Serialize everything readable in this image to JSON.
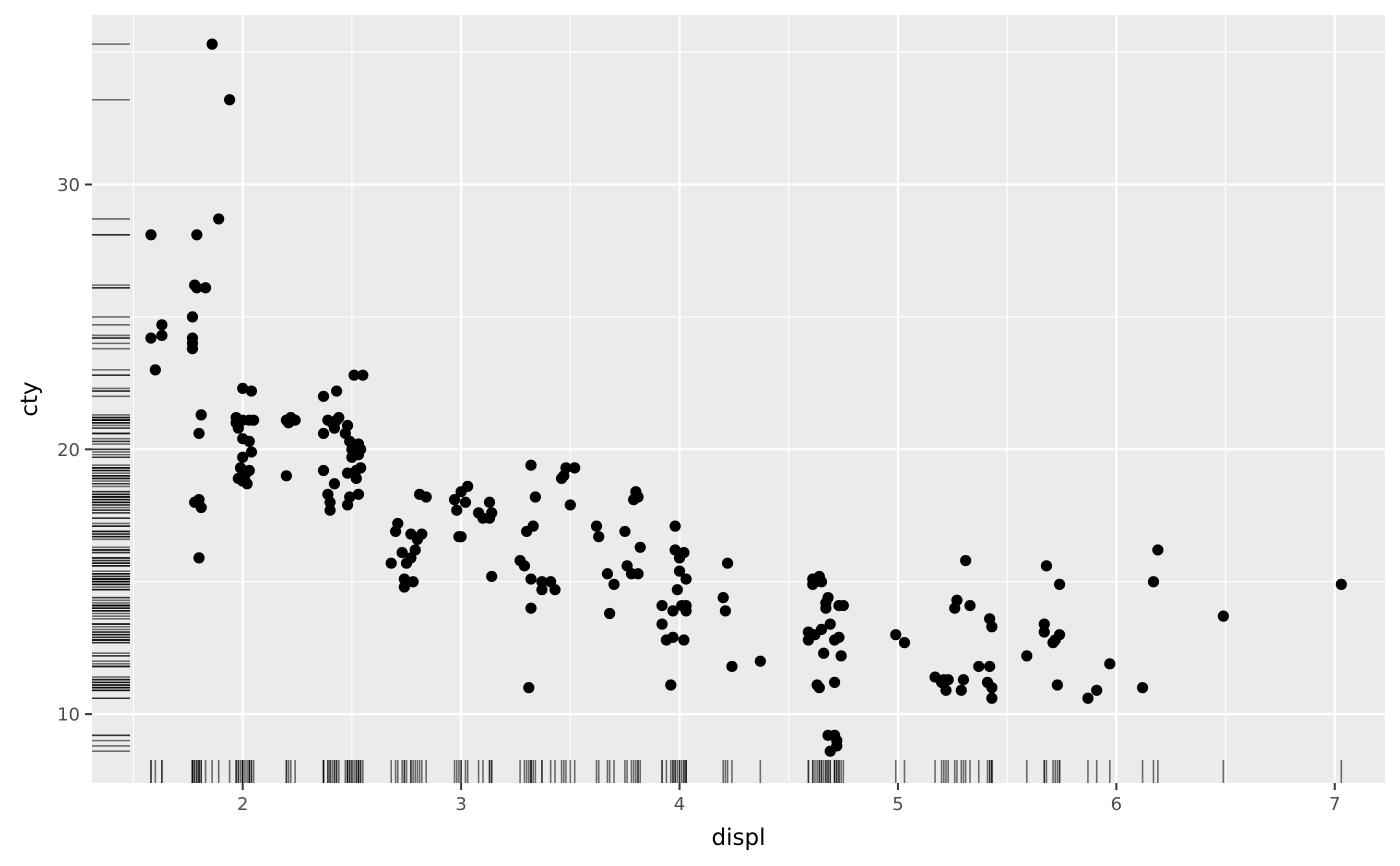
{
  "chart_data": {
    "type": "scatter",
    "title": "",
    "xlabel": "displ",
    "ylabel": "cty",
    "xlim": [
      1.31,
      7.23
    ],
    "ylim": [
      7.4,
      36.4
    ],
    "x_ticks": [
      2,
      3,
      4,
      5,
      6,
      7
    ],
    "y_ticks": [
      10,
      20,
      30
    ],
    "grid": true,
    "colors": {
      "panel": "#ebebeb",
      "grid": "#ffffff",
      "point": "#000000",
      "rug": "#000000",
      "tick_text": "#4d4d4d"
    },
    "rug": {
      "x": true,
      "y": true
    },
    "points": [
      [
        1.58,
        28.1
      ],
      [
        1.58,
        24.2
      ],
      [
        1.6,
        23.0
      ],
      [
        1.63,
        24.3
      ],
      [
        1.63,
        24.7
      ],
      [
        1.77,
        23.8
      ],
      [
        1.77,
        24.0
      ],
      [
        1.77,
        24.2
      ],
      [
        1.77,
        25.0
      ],
      [
        1.78,
        26.2
      ],
      [
        1.79,
        26.1
      ],
      [
        1.79,
        28.1
      ],
      [
        1.78,
        18.0
      ],
      [
        1.8,
        15.9
      ],
      [
        1.8,
        18.1
      ],
      [
        1.81,
        17.8
      ],
      [
        1.8,
        20.6
      ],
      [
        1.81,
        21.3
      ],
      [
        1.83,
        26.1
      ],
      [
        1.86,
        35.3
      ],
      [
        1.89,
        28.7
      ],
      [
        1.94,
        33.2
      ],
      [
        1.97,
        21.2
      ],
      [
        1.97,
        21.0
      ],
      [
        1.98,
        20.8
      ],
      [
        1.99,
        19.3
      ],
      [
        2.0,
        19.7
      ],
      [
        2.0,
        20.4
      ],
      [
        1.98,
        18.9
      ],
      [
        2.01,
        19.0
      ],
      [
        2.0,
        18.8
      ],
      [
        2.02,
        18.7
      ],
      [
        2.03,
        19.2
      ],
      [
        2.03,
        20.3
      ],
      [
        2.03,
        21.1
      ],
      [
        2.04,
        19.9
      ],
      [
        2.0,
        22.3
      ],
      [
        2.04,
        22.2
      ],
      [
        2.05,
        21.1
      ],
      [
        2.0,
        21.1
      ],
      [
        2.2,
        21.1
      ],
      [
        2.21,
        21.0
      ],
      [
        2.22,
        21.2
      ],
      [
        2.24,
        21.1
      ],
      [
        2.2,
        19.0
      ],
      [
        2.37,
        22.0
      ],
      [
        2.37,
        20.6
      ],
      [
        2.37,
        19.2
      ],
      [
        2.39,
        21.1
      ],
      [
        2.39,
        18.3
      ],
      [
        2.4,
        18.0
      ],
      [
        2.4,
        17.7
      ],
      [
        2.41,
        21.0
      ],
      [
        2.42,
        20.8
      ],
      [
        2.43,
        22.2
      ],
      [
        2.42,
        18.7
      ],
      [
        2.43,
        21.1
      ],
      [
        2.44,
        21.2
      ],
      [
        2.47,
        20.6
      ],
      [
        2.48,
        20.9
      ],
      [
        2.48,
        19.1
      ],
      [
        2.49,
        18.2
      ],
      [
        2.48,
        17.9
      ],
      [
        2.49,
        20.3
      ],
      [
        2.5,
        19.7
      ],
      [
        2.5,
        20.0
      ],
      [
        2.51,
        22.8
      ],
      [
        2.52,
        19.2
      ],
      [
        2.53,
        20.2
      ],
      [
        2.53,
        19.8
      ],
      [
        2.54,
        20.0
      ],
      [
        2.52,
        18.9
      ],
      [
        2.54,
        19.3
      ],
      [
        2.53,
        18.3
      ],
      [
        2.55,
        22.8
      ],
      [
        2.68,
        15.7
      ],
      [
        2.7,
        16.9
      ],
      [
        2.71,
        17.2
      ],
      [
        2.73,
        16.1
      ],
      [
        2.74,
        14.8
      ],
      [
        2.74,
        15.1
      ],
      [
        2.75,
        15.7
      ],
      [
        2.77,
        15.9
      ],
      [
        2.78,
        15.0
      ],
      [
        2.77,
        16.8
      ],
      [
        2.79,
        16.2
      ],
      [
        2.8,
        16.6
      ],
      [
        2.81,
        18.3
      ],
      [
        2.82,
        16.8
      ],
      [
        2.84,
        18.2
      ],
      [
        2.97,
        18.1
      ],
      [
        2.98,
        17.7
      ],
      [
        2.99,
        16.7
      ],
      [
        3.0,
        18.4
      ],
      [
        3.0,
        16.7
      ],
      [
        3.02,
        18.0
      ],
      [
        3.03,
        18.6
      ],
      [
        3.08,
        17.6
      ],
      [
        3.1,
        17.4
      ],
      [
        3.13,
        18.0
      ],
      [
        3.13,
        17.4
      ],
      [
        3.14,
        17.6
      ],
      [
        3.14,
        15.2
      ],
      [
        3.27,
        15.8
      ],
      [
        3.29,
        15.6
      ],
      [
        3.3,
        16.9
      ],
      [
        3.31,
        11.0
      ],
      [
        3.32,
        15.1
      ],
      [
        3.32,
        14.0
      ],
      [
        3.32,
        19.4
      ],
      [
        3.33,
        17.1
      ],
      [
        3.34,
        18.2
      ],
      [
        3.37,
        14.7
      ],
      [
        3.37,
        15.0
      ],
      [
        3.41,
        15.0
      ],
      [
        3.43,
        14.7
      ],
      [
        3.46,
        18.9
      ],
      [
        3.47,
        19.0
      ],
      [
        3.48,
        19.3
      ],
      [
        3.5,
        17.9
      ],
      [
        3.52,
        19.3
      ],
      [
        3.62,
        17.1
      ],
      [
        3.63,
        16.7
      ],
      [
        3.67,
        15.3
      ],
      [
        3.68,
        13.8
      ],
      [
        3.7,
        14.9
      ],
      [
        3.75,
        16.9
      ],
      [
        3.76,
        15.6
      ],
      [
        3.78,
        15.3
      ],
      [
        3.79,
        18.1
      ],
      [
        3.8,
        18.4
      ],
      [
        3.81,
        18.2
      ],
      [
        3.81,
        15.3
      ],
      [
        3.82,
        16.3
      ],
      [
        3.92,
        14.1
      ],
      [
        3.92,
        13.4
      ],
      [
        3.94,
        12.8
      ],
      [
        3.96,
        11.1
      ],
      [
        3.97,
        12.9
      ],
      [
        3.97,
        13.9
      ],
      [
        3.98,
        17.1
      ],
      [
        3.98,
        16.2
      ],
      [
        3.99,
        14.7
      ],
      [
        4.0,
        15.9
      ],
      [
        4.0,
        15.4
      ],
      [
        4.01,
        14.1
      ],
      [
        4.02,
        16.1
      ],
      [
        4.03,
        15.1
      ],
      [
        4.02,
        12.8
      ],
      [
        4.03,
        14.1
      ],
      [
        4.03,
        13.9
      ],
      [
        4.2,
        14.4
      ],
      [
        4.21,
        13.9
      ],
      [
        4.22,
        15.7
      ],
      [
        4.24,
        11.8
      ],
      [
        4.37,
        12.0
      ],
      [
        4.59,
        12.8
      ],
      [
        4.59,
        13.1
      ],
      [
        4.61,
        15.1
      ],
      [
        4.61,
        14.9
      ],
      [
        4.62,
        13.0
      ],
      [
        4.63,
        11.1
      ],
      [
        4.64,
        15.2
      ],
      [
        4.64,
        11.0
      ],
      [
        4.65,
        15.0
      ],
      [
        4.65,
        13.2
      ],
      [
        4.66,
        12.3
      ],
      [
        4.67,
        14.2
      ],
      [
        4.67,
        14.0
      ],
      [
        4.68,
        14.4
      ],
      [
        4.68,
        9.2
      ],
      [
        4.69,
        8.6
      ],
      [
        4.69,
        13.4
      ],
      [
        4.71,
        12.8
      ],
      [
        4.71,
        11.2
      ],
      [
        4.71,
        9.2
      ],
      [
        4.72,
        8.8
      ],
      [
        4.72,
        9.0
      ],
      [
        4.73,
        14.1
      ],
      [
        4.73,
        12.9
      ],
      [
        4.74,
        12.2
      ],
      [
        4.75,
        14.1
      ],
      [
        4.99,
        13.0
      ],
      [
        5.03,
        12.7
      ],
      [
        5.17,
        11.4
      ],
      [
        5.2,
        11.2
      ],
      [
        5.21,
        11.3
      ],
      [
        5.22,
        10.9
      ],
      [
        5.23,
        11.3
      ],
      [
        5.26,
        14.0
      ],
      [
        5.27,
        14.3
      ],
      [
        5.29,
        10.9
      ],
      [
        5.3,
        11.3
      ],
      [
        5.31,
        15.8
      ],
      [
        5.33,
        14.1
      ],
      [
        5.37,
        11.8
      ],
      [
        5.41,
        11.2
      ],
      [
        5.42,
        11.8
      ],
      [
        5.42,
        13.6
      ],
      [
        5.43,
        13.3
      ],
      [
        5.43,
        11.0
      ],
      [
        5.43,
        10.6
      ],
      [
        5.59,
        12.2
      ],
      [
        5.67,
        13.4
      ],
      [
        5.67,
        13.1
      ],
      [
        5.68,
        15.6
      ],
      [
        5.71,
        12.7
      ],
      [
        5.72,
        12.8
      ],
      [
        5.73,
        11.1
      ],
      [
        5.74,
        14.9
      ],
      [
        5.74,
        13.0
      ],
      [
        5.87,
        10.6
      ],
      [
        5.91,
        10.9
      ],
      [
        5.97,
        11.9
      ],
      [
        6.12,
        11.0
      ],
      [
        6.17,
        15.0
      ],
      [
        6.19,
        16.2
      ],
      [
        6.49,
        13.7
      ],
      [
        7.03,
        14.9
      ]
    ]
  }
}
